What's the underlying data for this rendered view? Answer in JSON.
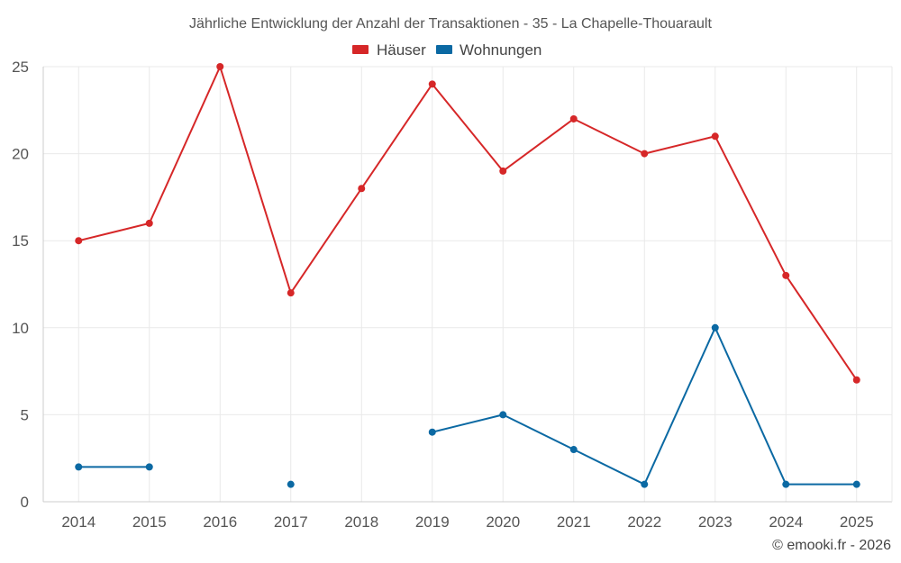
{
  "chart_data": {
    "type": "line",
    "title": "Jährliche Entwicklung der Anzahl der Transaktionen - 35 - La Chapelle-Thouarault",
    "categories": [
      "2014",
      "2015",
      "2016",
      "2017",
      "2018",
      "2019",
      "2020",
      "2021",
      "2022",
      "2023",
      "2024",
      "2025"
    ],
    "ylim": [
      0,
      25
    ],
    "yticks": [
      "0",
      "5",
      "10",
      "15",
      "20",
      "25"
    ],
    "grid": true,
    "legend_position": "top-center",
    "series": [
      {
        "name": "Häuser",
        "color": "#d62728",
        "values": [
          15,
          16,
          25,
          12,
          18,
          24,
          19,
          22,
          20,
          21,
          13,
          7
        ]
      },
      {
        "name": "Wohnungen",
        "color": "#0b69a3",
        "values": [
          2,
          2,
          null,
          1,
          null,
          4,
          5,
          3,
          1,
          10,
          1,
          1
        ]
      }
    ]
  },
  "credit": "© emooki.fr - 2026"
}
